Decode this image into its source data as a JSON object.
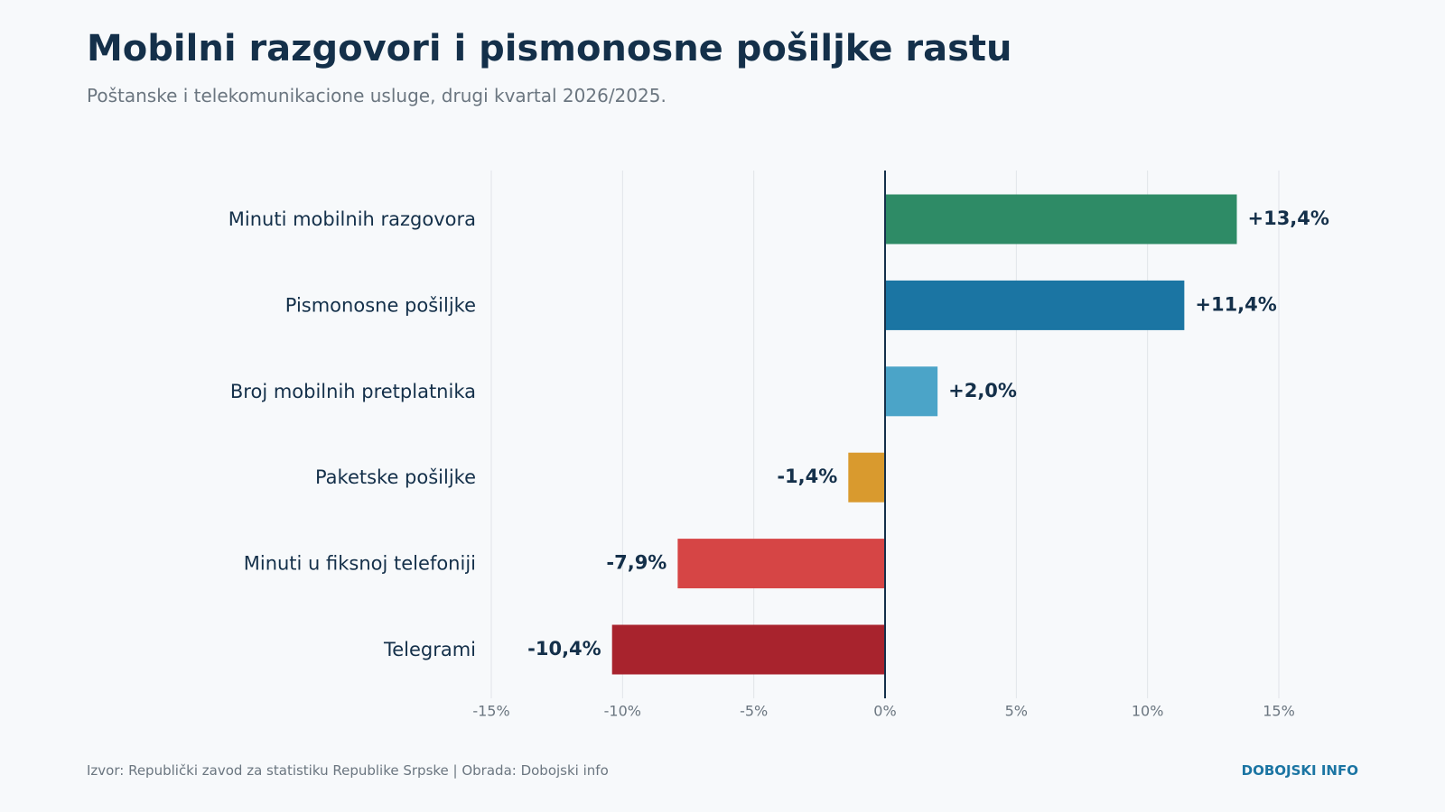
{
  "header": {
    "title": "Mobilni razgovori i pismonosne pošiljke rastu",
    "subtitle": "Poštanske i telekomunikacione usluge, drugi kvartal 2026/2025."
  },
  "footer": {
    "source": "Izvor: Republički zavod za statistiku Republike Srpske | Obrada: Dobojski info",
    "brand": "DOBOJSKI INFO"
  },
  "chart_data": {
    "type": "bar",
    "orientation": "horizontal",
    "title": "Mobilni razgovori i pismonosne pošiljke rastu",
    "subtitle": "Poštanske i telekomunikacione usluge, drugi kvartal 2026/2025.",
    "xlabel": "",
    "ylabel": "",
    "categories": [
      "Minuti mobilnih razgovora",
      "Pismonosne pošiljke",
      "Broj mobilnih pretplatnika",
      "Paketske pošiljke",
      "Minuti u fiksnoj telefoniji",
      "Telegrami"
    ],
    "values": [
      13.4,
      11.4,
      2.0,
      -1.4,
      -7.9,
      -10.4
    ],
    "value_labels": [
      "+13,4%",
      "+11,4%",
      "+2,0%",
      "-1,4%",
      "-7,9%",
      "-10,4%"
    ],
    "colors": [
      "#2e8b66",
      "#1b75a3",
      "#4ba4c8",
      "#d99a2e",
      "#d64545",
      "#a8232d"
    ],
    "xlim": [
      -15,
      15
    ],
    "x_ticks": [
      -15,
      -10,
      -5,
      0,
      5,
      10,
      15
    ],
    "x_tick_labels": [
      "-15%",
      "-10%",
      "-5%",
      "0%",
      "5%",
      "10%",
      "15%"
    ],
    "grid": "vertical",
    "legend": "none"
  },
  "colors": {
    "background": "#f7f9fb",
    "text_dark": "#14304a",
    "text_muted": "#6b7680",
    "grid": "#e1e4e8",
    "zero_line": "#14304a",
    "brand": "#1b75a3"
  }
}
